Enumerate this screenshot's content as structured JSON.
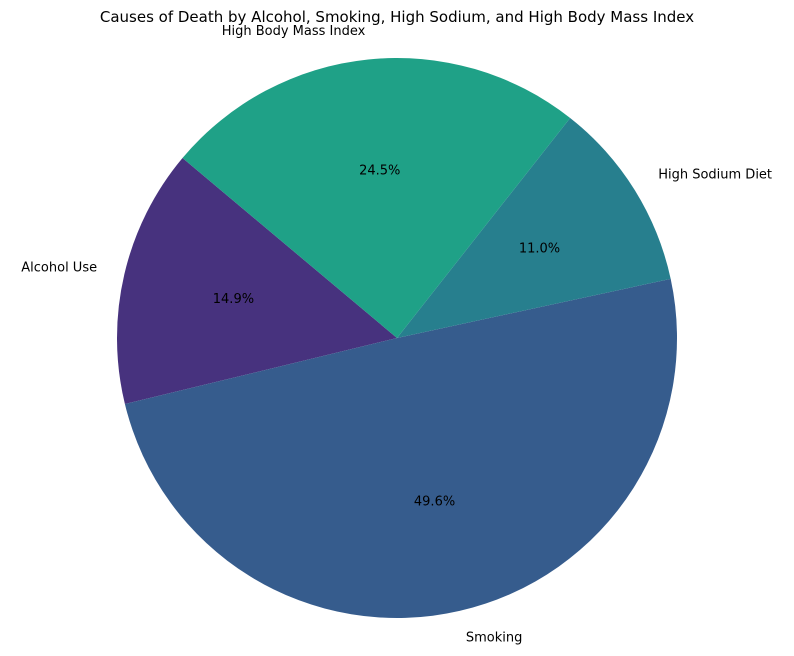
{
  "chart_data": {
    "type": "pie",
    "title": "Causes of Death by Alcohol, Smoking, High Sodium, and High Body Mass Index",
    "start_angle_deg": 140,
    "direction": "counterclockwise",
    "slices": [
      {
        "label": "Alcohol Use",
        "value": 14.9,
        "pct_label": "14.9%",
        "color": "#47327e"
      },
      {
        "label": "Smoking",
        "value": 49.6,
        "pct_label": "49.6%",
        "color": "#365c8d"
      },
      {
        "label": "High Sodium Diet",
        "value": 11.0,
        "pct_label": "11.0%",
        "color": "#277f8e"
      },
      {
        "label": "High Body Mass Index",
        "value": 24.5,
        "pct_label": "24.5%",
        "color": "#1fa187"
      }
    ]
  }
}
